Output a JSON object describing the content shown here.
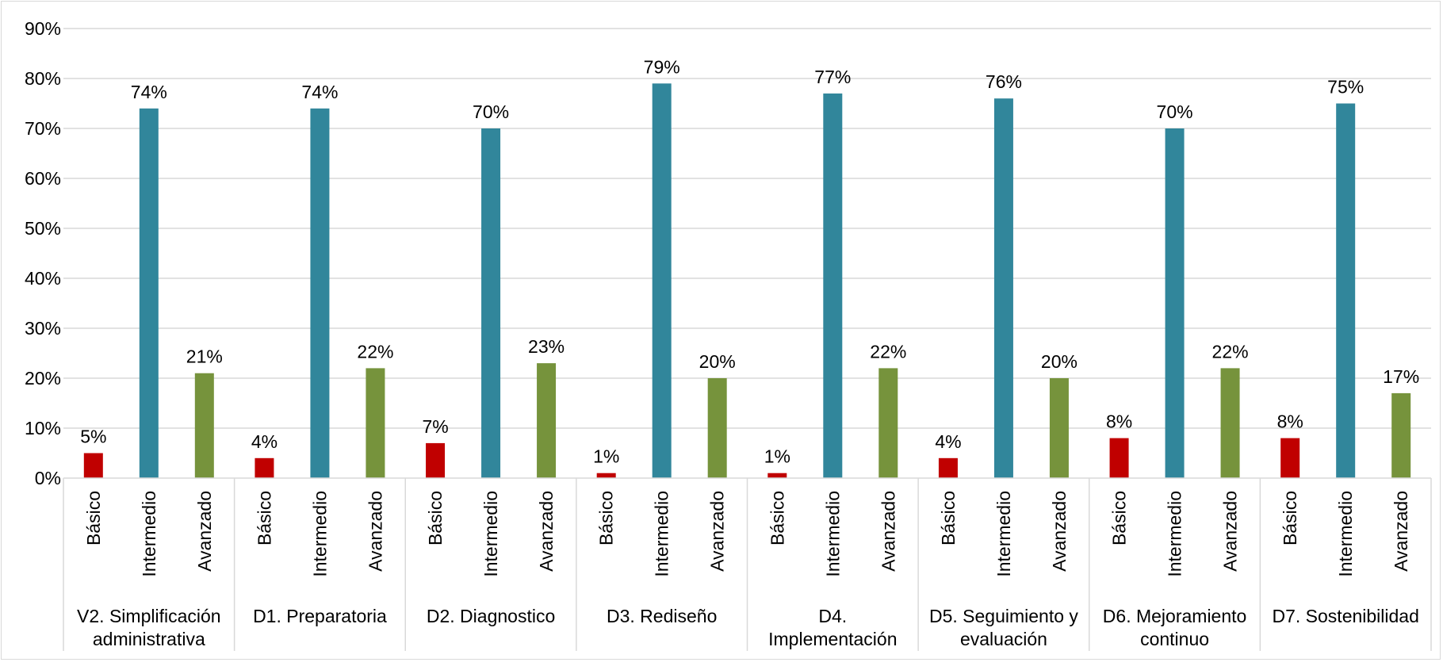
{
  "chart_data": {
    "type": "bar",
    "title": "",
    "xlabel": "",
    "ylabel": "",
    "ylim": [
      0,
      0.9
    ],
    "y_ticks": [
      "0%",
      "10%",
      "20%",
      "30%",
      "40%",
      "50%",
      "60%",
      "70%",
      "80%",
      "90%"
    ],
    "grid": true,
    "legend": "none",
    "levels": [
      "Básico",
      "Intermedio",
      "Avanzado"
    ],
    "level_colors": {
      "Básico": "#c00000",
      "Intermedio": "#31869b",
      "Avanzado": "#76933c"
    },
    "groups": [
      {
        "label_lines": [
          "V2. Simplificación",
          "administrativa"
        ],
        "values": [
          0.05,
          0.74,
          0.21
        ],
        "labels": [
          "5%",
          "74%",
          "21%"
        ]
      },
      {
        "label_lines": [
          "D1. Preparatoria"
        ],
        "values": [
          0.04,
          0.74,
          0.22
        ],
        "labels": [
          "4%",
          "74%",
          "22%"
        ]
      },
      {
        "label_lines": [
          "D2. Diagnostico"
        ],
        "values": [
          0.07,
          0.7,
          0.23
        ],
        "labels": [
          "7%",
          "70%",
          "23%"
        ]
      },
      {
        "label_lines": [
          "D3. Rediseño"
        ],
        "values": [
          0.01,
          0.79,
          0.2
        ],
        "labels": [
          "1%",
          "79%",
          "20%"
        ]
      },
      {
        "label_lines": [
          "D4.",
          "Implementación"
        ],
        "values": [
          0.01,
          0.77,
          0.22
        ],
        "labels": [
          "1%",
          "77%",
          "22%"
        ]
      },
      {
        "label_lines": [
          "D5. Seguimiento y",
          "evaluación"
        ],
        "values": [
          0.04,
          0.76,
          0.2
        ],
        "labels": [
          "4%",
          "76%",
          "20%"
        ]
      },
      {
        "label_lines": [
          "D6. Mejoramiento",
          "continuo"
        ],
        "values": [
          0.08,
          0.7,
          0.22
        ],
        "labels": [
          "8%",
          "70%",
          "22%"
        ]
      },
      {
        "label_lines": [
          "D7. Sostenibilidad"
        ],
        "values": [
          0.08,
          0.75,
          0.17
        ],
        "labels": [
          "8%",
          "75%",
          "17%"
        ]
      }
    ]
  }
}
